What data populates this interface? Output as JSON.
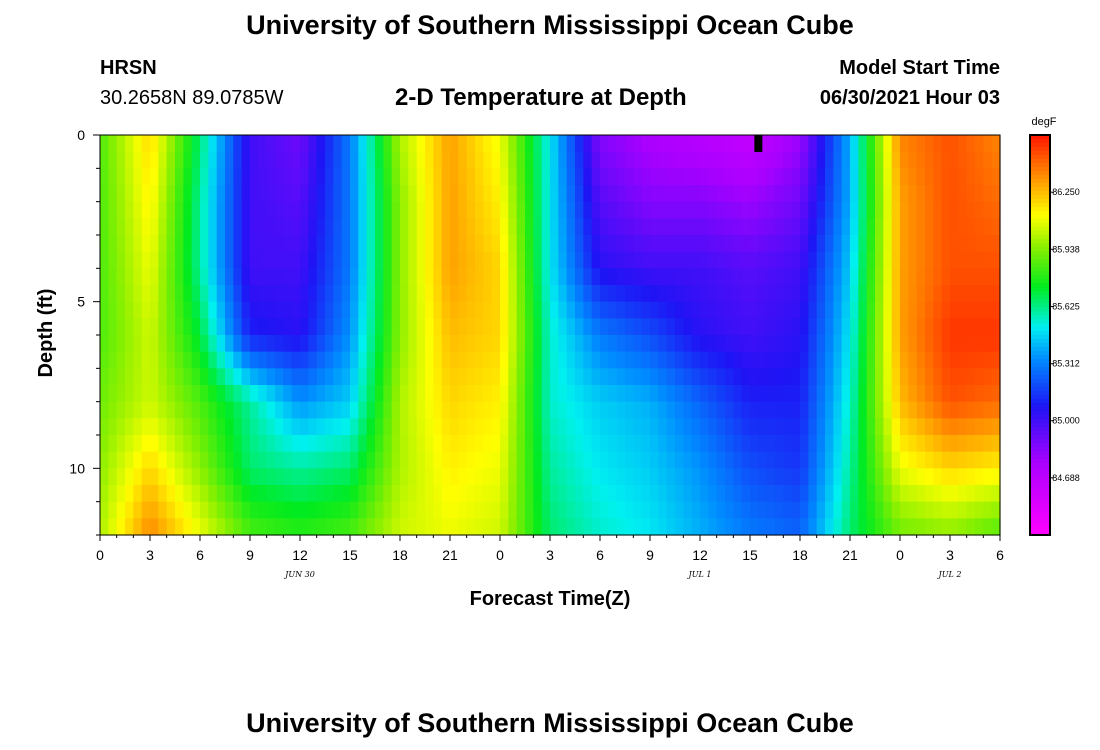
{
  "page": {
    "title": "University of Southern Mississippi Ocean Cube",
    "footer_title": "University of Southern Mississippi Ocean Cube",
    "station": "HRSN",
    "coordinates": "30.2658N  89.0785W",
    "subtitle": "2-D Temperature at Depth",
    "model_start_label": "Model Start Time",
    "model_start_value": "06/30/2021 Hour 03"
  },
  "chart_data": {
    "type": "heatmap",
    "title": "2-D Temperature at Depth",
    "xlabel": "Forecast Time(Z)",
    "ylabel": "Depth (ft)",
    "x_tick_labels": [
      "0",
      "3",
      "6",
      "9",
      "12",
      "15",
      "18",
      "21",
      "0",
      "3",
      "6",
      "9",
      "12",
      "15",
      "18",
      "21",
      "0",
      "3",
      "6"
    ],
    "x_hours": [
      0,
      3,
      6,
      9,
      12,
      15,
      18,
      21,
      24,
      27,
      30,
      33,
      36,
      39,
      42,
      45,
      48,
      51,
      54
    ],
    "date_labels": [
      {
        "label": "JUN 30",
        "hour": 12
      },
      {
        "label": "JUL 1",
        "hour": 36
      },
      {
        "label": "JUL 2",
        "hour": 51
      }
    ],
    "xlim": [
      0,
      54
    ],
    "ylim": [
      0,
      12
    ],
    "y_ticks": [
      0,
      5,
      10
    ],
    "current_time_marker_hour": 39.5,
    "colorbar": {
      "unit": "degF",
      "min": 84.375,
      "max": 86.563,
      "tick_labels": [
        "86.250",
        "85.938",
        "85.625",
        "85.312",
        "85.000",
        "84.688"
      ],
      "tick_values": [
        86.25,
        85.938,
        85.625,
        85.312,
        85.0,
        84.688
      ]
    },
    "time_hours": [
      0,
      3,
      6,
      9,
      12,
      15,
      18,
      21,
      24,
      27,
      30,
      33,
      36,
      39,
      42,
      45,
      48,
      51,
      54
    ],
    "depth_levels_ft": [
      0,
      2,
      4,
      6,
      8,
      10,
      12
    ],
    "temperature_degF": [
      [
        85.85,
        86.2,
        85.65,
        85.0,
        84.9,
        85.3,
        86.0,
        86.3,
        86.1,
        85.5,
        84.85,
        84.75,
        84.7,
        84.65,
        84.8,
        85.4,
        86.35,
        86.45,
        86.35
      ],
      [
        85.85,
        86.15,
        85.6,
        85.0,
        84.95,
        85.3,
        85.95,
        86.3,
        86.15,
        85.5,
        84.95,
        84.85,
        84.85,
        84.8,
        84.9,
        85.4,
        86.3,
        86.45,
        86.4
      ],
      [
        85.85,
        86.1,
        85.6,
        85.0,
        85.0,
        85.3,
        85.95,
        86.3,
        86.2,
        85.5,
        85.05,
        85.0,
        85.0,
        84.95,
        85.0,
        85.45,
        86.3,
        86.45,
        86.45
      ],
      [
        85.85,
        86.05,
        85.7,
        85.1,
        85.05,
        85.35,
        85.95,
        86.25,
        86.2,
        85.55,
        85.3,
        85.2,
        85.05,
        85.0,
        85.05,
        85.5,
        86.3,
        86.5,
        86.5
      ],
      [
        85.9,
        86.05,
        85.85,
        85.6,
        85.35,
        85.45,
        86.0,
        86.2,
        86.15,
        85.55,
        85.45,
        85.4,
        85.25,
        85.1,
        85.1,
        85.55,
        86.25,
        86.45,
        86.4
      ],
      [
        85.95,
        86.2,
        85.95,
        85.65,
        85.6,
        85.65,
        86.0,
        86.15,
        86.1,
        85.6,
        85.5,
        85.45,
        85.35,
        85.2,
        85.15,
        85.6,
        86.1,
        86.2,
        86.15
      ],
      [
        86.0,
        86.35,
        86.1,
        85.85,
        85.8,
        85.85,
        86.05,
        86.1,
        86.05,
        85.65,
        85.55,
        85.5,
        85.4,
        85.3,
        85.25,
        85.65,
        85.9,
        85.95,
        85.85
      ]
    ]
  }
}
